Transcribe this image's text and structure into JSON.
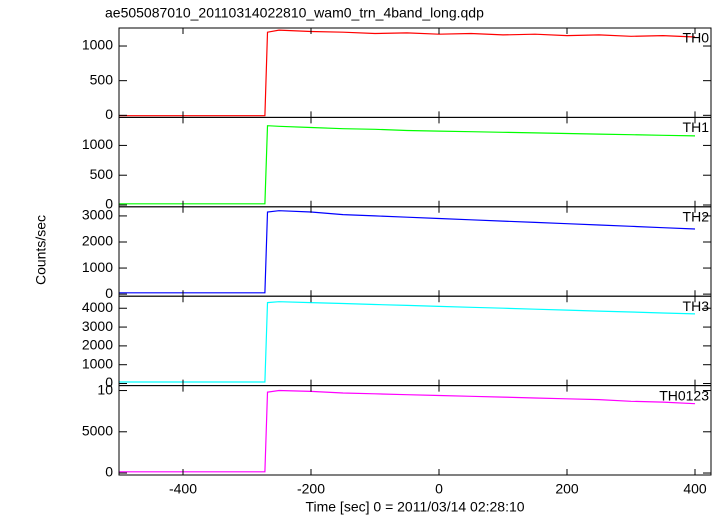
{
  "title": "ae505087010_20110314022810_wam0_trn_4band_long.qdp",
  "x_label": "Time [sec] 0 = 2011/03/14 02:28:10",
  "y_label": "Counts/sec",
  "xlim": [
    -500,
    425
  ],
  "xticks": [
    -400,
    -200,
    0,
    200,
    400
  ],
  "x": [
    -500,
    -450,
    -400,
    -350,
    -300,
    -272,
    -268,
    -250,
    -200,
    -150,
    -100,
    -50,
    0,
    50,
    100,
    150,
    200,
    250,
    300,
    350,
    400
  ],
  "chart_data": [
    {
      "type": "line",
      "ylim": [
        -30,
        1260
      ],
      "yticks": [
        0,
        500,
        1000
      ],
      "series": [
        {
          "name": "TH0",
          "color": "#ff0000",
          "values": [
            -5,
            -5,
            -5,
            -5,
            -5,
            -5,
            1200,
            1230,
            1210,
            1200,
            1180,
            1190,
            1170,
            1180,
            1160,
            1170,
            1150,
            1160,
            1140,
            1150,
            1130
          ]
        }
      ]
    },
    {
      "type": "line",
      "ylim": [
        -30,
        1470
      ],
      "yticks": [
        0,
        500,
        1000
      ],
      "series": [
        {
          "name": "TH1",
          "color": "#00ff00",
          "values": [
            20,
            20,
            20,
            20,
            20,
            20,
            1330,
            1320,
            1300,
            1280,
            1270,
            1250,
            1240,
            1230,
            1220,
            1210,
            1200,
            1190,
            1180,
            1170,
            1160
          ]
        }
      ]
    },
    {
      "type": "line",
      "ylim": [
        -80,
        3350
      ],
      "yticks": [
        0,
        1000,
        2000,
        3000
      ],
      "series": [
        {
          "name": "TH2",
          "color": "#0000ff",
          "values": [
            50,
            50,
            50,
            50,
            50,
            50,
            3150,
            3200,
            3150,
            3050,
            3000,
            2950,
            2900,
            2850,
            2800,
            2750,
            2700,
            2650,
            2600,
            2550,
            2500
          ]
        }
      ]
    },
    {
      "type": "line",
      "ylim": [
        -110,
        4640
      ],
      "yticks": [
        0,
        1000,
        2000,
        3000,
        4000
      ],
      "series": [
        {
          "name": "TH3",
          "color": "#00ffff",
          "values": [
            80,
            80,
            80,
            80,
            80,
            80,
            4300,
            4350,
            4300,
            4250,
            4200,
            4150,
            4100,
            4050,
            4000,
            3950,
            3900,
            3850,
            3800,
            3750,
            3700
          ]
        }
      ]
    },
    {
      "type": "line",
      "ylim": [
        -240,
        10600
      ],
      "yticks": [
        0,
        5000,
        {
          "value": 10000,
          "label": "10"
        }
      ],
      "series": [
        {
          "name": "TH0123",
          "color": "#ff00ff",
          "values": [
            150,
            150,
            150,
            150,
            150,
            150,
            9800,
            10000,
            9900,
            9700,
            9600,
            9500,
            9400,
            9300,
            9200,
            9100,
            9000,
            8900,
            8700,
            8600,
            8400
          ]
        }
      ]
    }
  ]
}
